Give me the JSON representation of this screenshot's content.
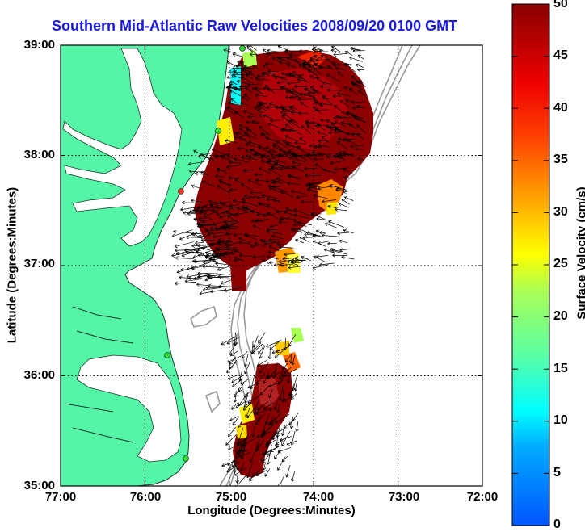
{
  "title": "Southern Mid-Atlantic Raw Velocities 2008/09/20 0100 GMT",
  "xaxis": {
    "label": "Longitude (Degrees:Minutes)",
    "ticks": [
      "77:00",
      "76:00",
      "75:00",
      "74:00",
      "73:00",
      "72:00"
    ]
  },
  "yaxis": {
    "label": "Latitude (Degrees:Minutes)",
    "ticks": [
      "39:00",
      "38:00",
      "37:00",
      "36:00",
      "35:00"
    ]
  },
  "colorbar": {
    "label": "Surface Velocity (cm/s)",
    "ticks": [
      "50",
      "45",
      "40",
      "35",
      "30",
      "25",
      "20",
      "15",
      "10",
      "5",
      "0"
    ],
    "range": [
      0,
      50
    ]
  },
  "map_extent": {
    "lon": [
      -77,
      -72
    ],
    "lat": [
      35,
      39
    ]
  },
  "colors": {
    "land": "#55f5a8",
    "title": "#1a1ae6",
    "bathymetry": "#999999",
    "high_velocity": "#8b0000"
  }
}
